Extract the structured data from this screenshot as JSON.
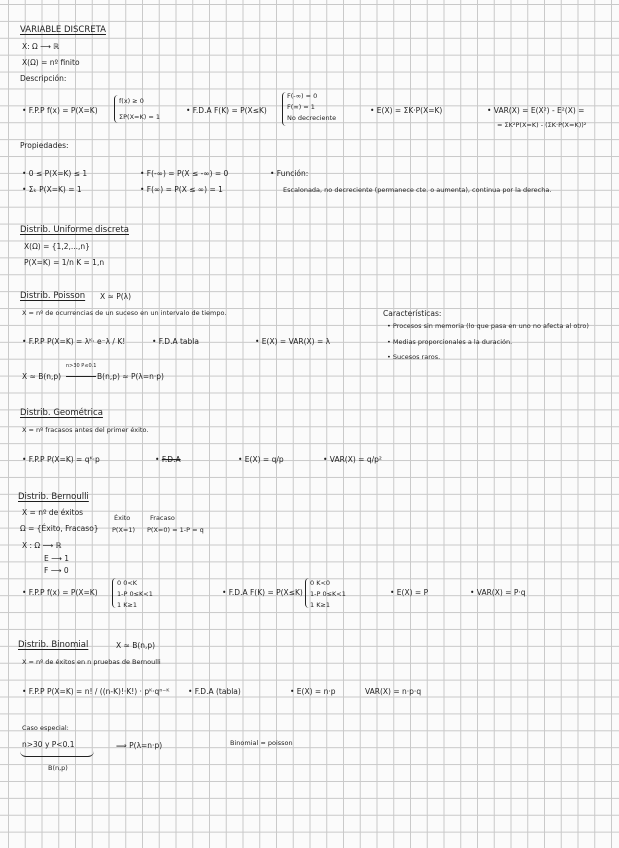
{
  "discreta": {
    "title": "VARIABLE DISCRETA",
    "l1": "X: Ω ⟶ ℝ",
    "l2": "X(Ω) = nº finito",
    "desc": "Descripción:",
    "fpp": "• F.P.P   f(x) = P(X=K)",
    "fpp_c1": "f(x) ≥ 0",
    "fpp_c2": "ΣP(X=K) = 1",
    "fda": "• F.D.A   F(K) = P(X≤K)",
    "fda_c1": "F(-∞) = 0",
    "fda_c2": "F(∞) = 1",
    "fda_c3": "No decreciente",
    "ex": "• E(X) = ΣK·P(X=K)",
    "var1": "• VAR(X) = E(X²) - E²(X) =",
    "var2": "= ΣK²P(X=K) - (ΣK·P(X=K))²",
    "prop": "Propiedades:",
    "p1": "• 0 ≤ P(X=K) ≤ 1",
    "p2": "• Σₖ P(X=K) = 1",
    "p3": "• F(-∞) = P(X ≤ -∞) = 0",
    "p4": "• F(∞) = P(X ≤ ∞) = 1",
    "p5": "• Función:",
    "p6": "Escalonada, no decreciente (permanece cte. o aumenta), continua por la derecha."
  },
  "uniforme": {
    "title": "Distrib. Uniforme discreta",
    "l1": "X(Ω) = {1,2,...,n}",
    "l2": "P(X=K) = 1/n     K = 1,n"
  },
  "poisson": {
    "title": "Distrib. Poisson",
    "notation": "X ≈ P(λ)",
    "def": "X = nº de ocurrencias de un suceso en un intervalo de tiempo.",
    "fpp": "• F.P.P    P(X=K) = λᴷ· e⁻λ / K!",
    "fda": "• F.D.A   tabla",
    "ex": "• E(X) = VAR(X) = λ",
    "approx": "X ≈ B(n,p)",
    "cond": "n>30 P≤0.1",
    "approx2": "B(n,p) ≈ P(λ=n·p)",
    "car_title": "Características:",
    "car": [
      "• Procesos sin memoria (lo que pasa en uno no afecta al otro)",
      "• Medias proporcionales a la duración.",
      "• Sucesos raros."
    ]
  },
  "geometrica": {
    "title": "Distrib. Geométrica",
    "def": "X = nº fracasos antes del primer éxito.",
    "fpp": "• F.P.P   P(X=K) = qᴷ·p",
    "fda": "F.D.A",
    "ex": "• E(X) = q/p",
    "var": "• VAR(X) = q/p²"
  },
  "bernoulli": {
    "title": "Distrib. Bernoulli",
    "def": "X = nº de éxitos",
    "exito": "Éxito",
    "fracaso": "Fracaso",
    "omega": "Ω = {Éxito, Fracaso}",
    "p1": "P(X=1)",
    "p0": "P(X=0) = 1-P = q",
    "map1": "X :  Ω ⟶ ℝ",
    "map2": "E ⟶ 1",
    "map3": "F ⟶ 0",
    "fpp": "• F.P.P    f(x) = P(X=K)",
    "fpp_c": [
      "0     0<K",
      "1-P  0≤K<1",
      "1     K≥1"
    ],
    "fda": "• F.D.A   F(K) = P(X≤K)",
    "fda_c": [
      "0     K<0",
      "1-P  0≤K<1",
      "1     K≥1"
    ],
    "ex": "• E(X) = P",
    "var": "• VAR(X) = P·q"
  },
  "binomial": {
    "title": "Distrib. Binomial",
    "notation": "X ≈ B(n,p)",
    "def": "X = nº de éxitos en n pruebas de Bernoulli",
    "fpp": "• F.P.P   P(X=K) = n! / ((n-K)!·K!) · pᴷ·qⁿ⁻ᴷ",
    "fda": "• F.D.A    (tabla)",
    "ex": "• E(X) = n·p",
    "var": "VAR(X) = n·p·q",
    "caso": "Caso especial:",
    "cond": "n>30  y  P<0.1",
    "arrow": "⟹   P(λ=n·p)",
    "eq": "Binomial ≈ poisson",
    "brace_label": "B(n,p)"
  }
}
